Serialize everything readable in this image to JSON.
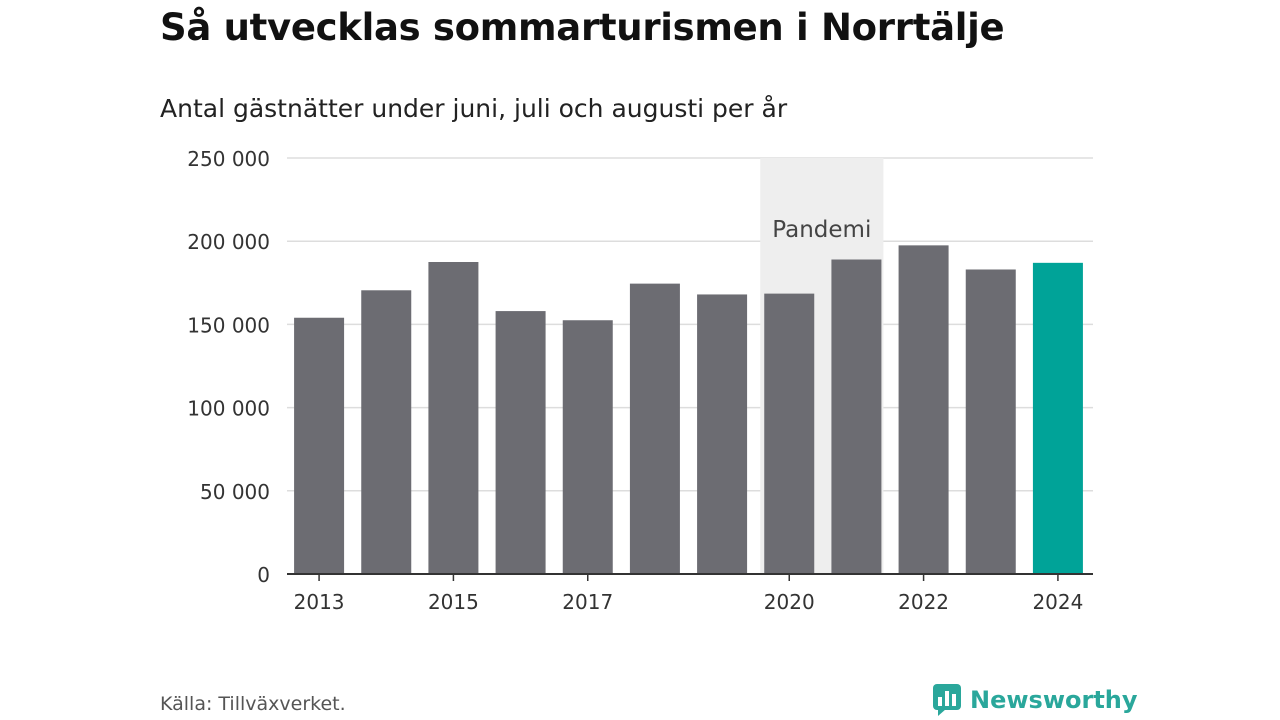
{
  "title": "Så utvecklas sommarturismen i Norrtälje",
  "subtitle": "Antal gästnätter under juni, juli och augusti per år",
  "source": "Källa: Tillväxverket.",
  "brand": {
    "name": "Newsworthy",
    "icon": "newsworthy-logo-icon",
    "color": "#2aa79b"
  },
  "chart_data": {
    "type": "bar",
    "title": "Så utvecklas sommarturismen i Norrtälje",
    "subtitle": "Antal gästnätter under juni, juli och augusti per år",
    "categories": [
      "2013",
      "2014",
      "2015",
      "2016",
      "2017",
      "2018",
      "2019",
      "2020",
      "2021",
      "2022",
      "2023",
      "2024"
    ],
    "values": [
      154000,
      170500,
      187500,
      158000,
      152500,
      174500,
      168000,
      168500,
      189000,
      197500,
      183000,
      187000
    ],
    "x_tick_labels": [
      "2013",
      "2015",
      "2017",
      "2020",
      "2022",
      "2024"
    ],
    "y_ticks": [
      0,
      50000,
      100000,
      150000,
      200000,
      250000
    ],
    "y_tick_labels": [
      "0",
      "50 000",
      "100 000",
      "150 000",
      "200 000",
      "250 000"
    ],
    "ylim": [
      0,
      250000
    ],
    "xlabel": "",
    "ylabel": "",
    "grid": true,
    "highlight": {
      "category": "2024",
      "color": "#00a398"
    },
    "bar_color": "#6c6c72",
    "annotation": {
      "label": "Pandemi",
      "from": "2020",
      "to": "2021",
      "color": "#eeeeee"
    }
  }
}
